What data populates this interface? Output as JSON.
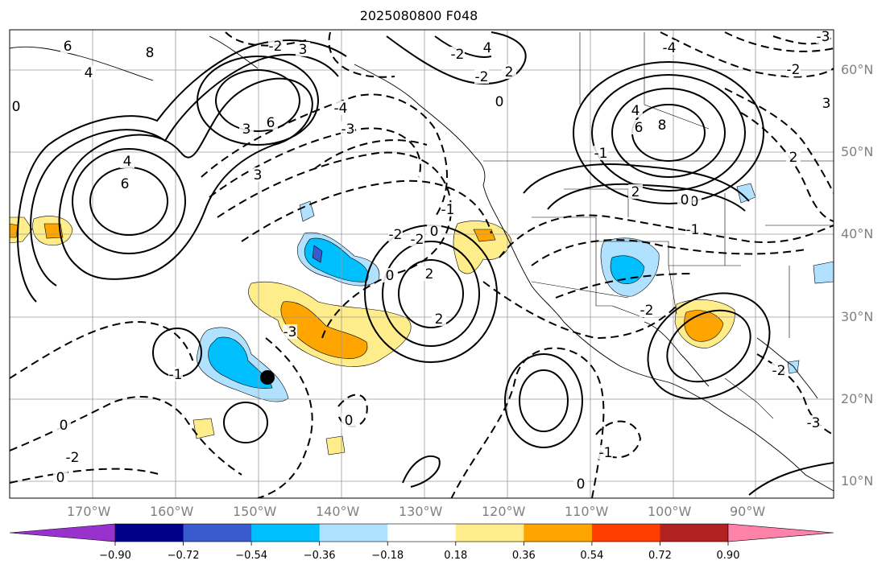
{
  "title": "2025080800 F048",
  "map": {
    "latitude_labels": [
      "60°N",
      "50°N",
      "40°N",
      "30°N",
      "20°N",
      "10°N"
    ],
    "longitude_labels": [
      "170°W",
      "160°W",
      "150°W",
      "140°W",
      "130°W",
      "120°W",
      "110°W",
      "100°W",
      "90°W"
    ],
    "contour_labels": [
      "6",
      "8",
      "4",
      "0",
      "-2",
      "3",
      "4",
      "2",
      "-3",
      "-4",
      "-3",
      "3",
      "-1",
      "4",
      "6",
      "3",
      "6",
      "-2",
      "-2",
      "0",
      "2",
      "2",
      "-3",
      "0",
      "-2",
      "-2",
      "0",
      "0",
      "-1",
      "2",
      "-1",
      "0",
      "-2",
      "-1",
      "0",
      "0",
      "-2",
      "0",
      "-1",
      "0",
      "3",
      "2",
      "4",
      "-2",
      "6",
      "8",
      "-4",
      "-2",
      "-3"
    ],
    "marker": "hurricane-position-dot"
  },
  "colorbar": {
    "ticks": [
      "−0.90",
      "−0.72",
      "−0.54",
      "−0.36",
      "−0.18",
      "0.18",
      "0.36",
      "0.54",
      "0.72",
      "0.90"
    ],
    "colors": [
      "#9932CC",
      "#00008B",
      "#3A5BCD",
      "#00BFFF",
      "#B0E2FF",
      "#FFFFFF",
      "#FFEC8B",
      "#FFA500",
      "#FF3E00",
      "#B22222",
      "#FF82AB"
    ]
  }
}
